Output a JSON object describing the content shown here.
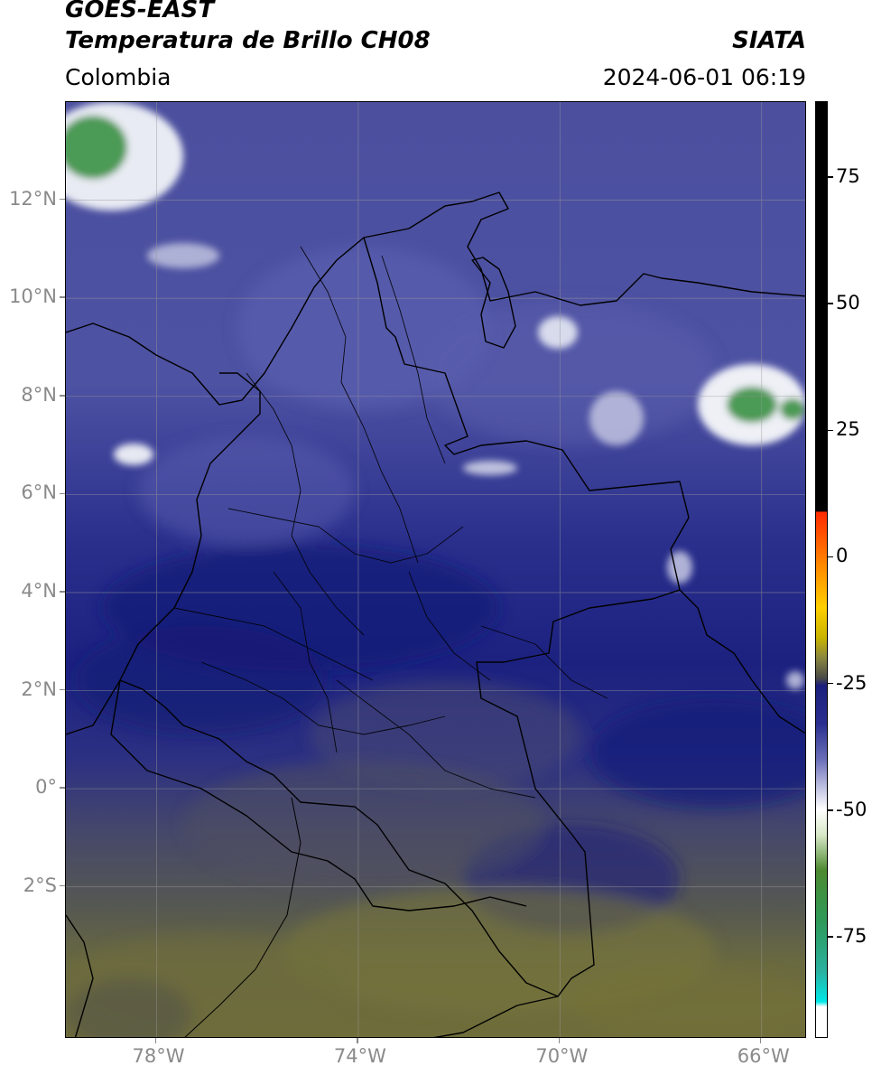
{
  "header": {
    "title_line1": "GOES-EAST",
    "title_line2": "Temperatura de Brillo CH08",
    "agency": "SIATA",
    "region": "Colombia",
    "timestamp": "2024-06-01 06:19"
  },
  "map": {
    "lon_range": [
      -79.8,
      -65.1
    ],
    "lat_range": [
      -5.1,
      14.0
    ],
    "x_ticks": [
      {
        "value": -78,
        "label": "78°W"
      },
      {
        "value": -74,
        "label": "74°W"
      },
      {
        "value": -70,
        "label": "70°W"
      },
      {
        "value": -66,
        "label": "66°W"
      }
    ],
    "y_ticks": [
      {
        "value": 12,
        "label": "12°N"
      },
      {
        "value": 10,
        "label": "10°N"
      },
      {
        "value": 8,
        "label": "8°N"
      },
      {
        "value": 6,
        "label": "6°N"
      },
      {
        "value": 4,
        "label": "4°N"
      },
      {
        "value": 2,
        "label": "2°N"
      },
      {
        "value": 0,
        "label": "0°"
      },
      {
        "value": -2,
        "label": "2°S"
      }
    ],
    "gridlines": true,
    "colors": {
      "deep_blue": "#1a1f7a",
      "mid_blue": "#3a3e98",
      "light_blue": "#5a5fae",
      "olive": "#6c6a3a",
      "grey_olive": "#4c4d4a",
      "green": "#3f9e4a",
      "white_cloud": "#eef0f6"
    }
  },
  "colorbar": {
    "range": [
      -95,
      90
    ],
    "ticks": [
      {
        "value": 75,
        "label": "75"
      },
      {
        "value": 50,
        "label": "50"
      },
      {
        "value": 25,
        "label": "25"
      },
      {
        "value": 0,
        "label": "0"
      },
      {
        "value": -25,
        "label": "-25"
      },
      {
        "value": -50,
        "label": "-50"
      },
      {
        "value": -75,
        "label": "-75"
      }
    ]
  }
}
